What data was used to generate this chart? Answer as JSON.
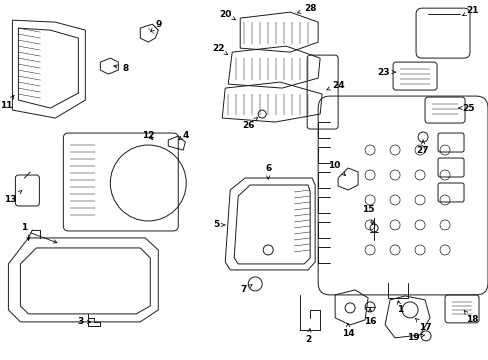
{
  "bg_color": "#ffffff",
  "line_color": "#1a1a1a",
  "lw": 0.7,
  "fig_width": 4.89,
  "fig_height": 3.6,
  "dpi": 100
}
